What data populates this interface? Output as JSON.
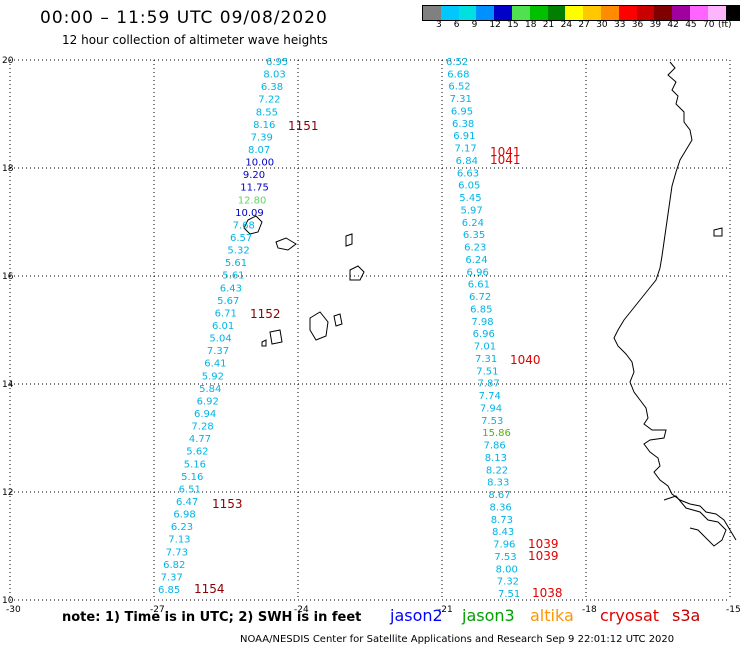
{
  "header": {
    "title": "00:00 – 11:59 UTC 09/08/2020",
    "subtitle": "12 hour collection of altimeter wave heights"
  },
  "legend": {
    "unit": "(ft)",
    "colors": [
      "#808080",
      "#00c8ff",
      "#00e0e0",
      "#0090ff",
      "#0000c8",
      "#50e050",
      "#00c000",
      "#008000",
      "#ffff00",
      "#ffc800",
      "#ff8c00",
      "#ff0000",
      "#c80000",
      "#800000",
      "#a000a0",
      "#ff64ff",
      "#ffb4ff",
      "#000000"
    ],
    "labels": [
      "3",
      "6",
      "9",
      "12",
      "15",
      "18",
      "21",
      "24",
      "27",
      "30",
      "33",
      "36",
      "39",
      "42",
      "45",
      "70"
    ]
  },
  "axes": {
    "x_ticks": [
      "-30",
      "-27",
      "-24",
      "-21",
      "-18",
      "-15"
    ],
    "y_ticks": [
      "20",
      "18",
      "16",
      "14",
      "12",
      "10"
    ]
  },
  "footer": {
    "note": "note: 1) Time is in UTC; 2) SWH is in feet",
    "credit": "NOAA/NESDIS Center for Satellite Applications and Research   Sep  9 22:01:12 UTC 2020"
  },
  "satellites": [
    {
      "name": "jason2",
      "color": "#0000ff"
    },
    {
      "name": "jason3",
      "color": "#00a000"
    },
    {
      "name": "altika",
      "color": "#ff9600"
    },
    {
      "name": "cryosat",
      "color": "#e00000"
    },
    {
      "name": "s3a",
      "color": "#c00000"
    }
  ],
  "tracks": {
    "track_a": [
      {
        "v": "6.95",
        "c": "#00b4e6"
      },
      {
        "v": "8.03",
        "c": "#00b4e6"
      },
      {
        "v": "6.38",
        "c": "#00b4e6"
      },
      {
        "v": "7.22",
        "c": "#00b4e6"
      },
      {
        "v": "8.55",
        "c": "#00b4e6"
      },
      {
        "v": "8.16",
        "c": "#00b4e6"
      },
      {
        "v": "7.39",
        "c": "#00b4e6"
      },
      {
        "v": "8.07",
        "c": "#00b4e6"
      },
      {
        "v": "10.00",
        "c": "#0000c8"
      },
      {
        "v": "9.20",
        "c": "#0000c8"
      },
      {
        "v": "11.75",
        "c": "#0000c8"
      },
      {
        "v": "12.80",
        "c": "#64d264"
      },
      {
        "v": "10.09",
        "c": "#0000c8"
      },
      {
        "v": "7.68",
        "c": "#00b4e6"
      },
      {
        "v": "6.57",
        "c": "#00b4e6"
      },
      {
        "v": "5.32",
        "c": "#00b4e6"
      },
      {
        "v": "5.61",
        "c": "#00b4e6"
      },
      {
        "v": "5.61",
        "c": "#00b4e6"
      },
      {
        "v": "6.43",
        "c": "#00b4e6"
      },
      {
        "v": "5.67",
        "c": "#00b4e6"
      },
      {
        "v": "6.71",
        "c": "#00b4e6"
      },
      {
        "v": "6.01",
        "c": "#00b4e6"
      },
      {
        "v": "5.04",
        "c": "#00b4e6"
      },
      {
        "v": "7.37",
        "c": "#00b4e6"
      },
      {
        "v": "6.41",
        "c": "#00b4e6"
      },
      {
        "v": "5.92",
        "c": "#00b4e6"
      },
      {
        "v": "5.84",
        "c": "#00b4e6"
      },
      {
        "v": "6.92",
        "c": "#00b4e6"
      },
      {
        "v": "6.94",
        "c": "#00b4e6"
      },
      {
        "v": "7.28",
        "c": "#00b4e6"
      },
      {
        "v": "4.77",
        "c": "#00b4e6"
      },
      {
        "v": "5.62",
        "c": "#00b4e6"
      },
      {
        "v": "5.16",
        "c": "#00b4e6"
      },
      {
        "v": "5.16",
        "c": "#00b4e6"
      },
      {
        "v": "6.51",
        "c": "#00b4e6"
      },
      {
        "v": "6.47",
        "c": "#00b4e6"
      },
      {
        "v": "6.98",
        "c": "#00b4e6"
      },
      {
        "v": "6.23",
        "c": "#00b4e6"
      },
      {
        "v": "7.13",
        "c": "#00b4e6"
      },
      {
        "v": "7.73",
        "c": "#00b4e6"
      },
      {
        "v": "6.82",
        "c": "#00b4e6"
      },
      {
        "v": "7.37",
        "c": "#00b4e6"
      },
      {
        "v": "6.85",
        "c": "#00b4e6"
      }
    ],
    "track_b": [
      {
        "v": "6.52",
        "c": "#00b4e6"
      },
      {
        "v": "6.68",
        "c": "#00b4e6"
      },
      {
        "v": "6.52",
        "c": "#00b4e6"
      },
      {
        "v": "7.31",
        "c": "#00b4e6"
      },
      {
        "v": "6.95",
        "c": "#00b4e6"
      },
      {
        "v": "6.38",
        "c": "#00b4e6"
      },
      {
        "v": "6.91",
        "c": "#00b4e6"
      },
      {
        "v": "7.17",
        "c": "#00b4e6"
      },
      {
        "v": "6.84",
        "c": "#00b4e6"
      },
      {
        "v": "6.63",
        "c": "#00b4e6"
      },
      {
        "v": "6.05",
        "c": "#00b4e6"
      },
      {
        "v": "5.45",
        "c": "#00b4e6"
      },
      {
        "v": "5.97",
        "c": "#00b4e6"
      },
      {
        "v": "6.24",
        "c": "#00b4e6"
      },
      {
        "v": "6.35",
        "c": "#00b4e6"
      },
      {
        "v": "6.23",
        "c": "#00b4e6"
      },
      {
        "v": "6.24",
        "c": "#00b4e6"
      },
      {
        "v": "6.96",
        "c": "#00b4e6"
      },
      {
        "v": "6.61",
        "c": "#00b4e6"
      },
      {
        "v": "6.72",
        "c": "#00b4e6"
      },
      {
        "v": "6.85",
        "c": "#00b4e6"
      },
      {
        "v": "7.98",
        "c": "#00b4e6"
      },
      {
        "v": "6.96",
        "c": "#00b4e6"
      },
      {
        "v": "7.01",
        "c": "#00b4e6"
      },
      {
        "v": "7.31",
        "c": "#00b4e6"
      },
      {
        "v": "7.51",
        "c": "#00b4e6"
      },
      {
        "v": "7.87",
        "c": "#00b4e6"
      },
      {
        "v": "7.74",
        "c": "#00b4e6"
      },
      {
        "v": "7.94",
        "c": "#00b4e6"
      },
      {
        "v": "7.53",
        "c": "#00b4e6"
      },
      {
        "v": "15.86",
        "c": "#50b400"
      },
      {
        "v": "7.86",
        "c": "#00b4e6"
      },
      {
        "v": "8.13",
        "c": "#00b4e6"
      },
      {
        "v": "8.22",
        "c": "#00b4e6"
      },
      {
        "v": "8.33",
        "c": "#00b4e6"
      },
      {
        "v": "8.67",
        "c": "#00b4e6"
      },
      {
        "v": "8.36",
        "c": "#00b4e6"
      },
      {
        "v": "8.73",
        "c": "#00b4e6"
      },
      {
        "v": "8.43",
        "c": "#00b4e6"
      },
      {
        "v": "7.96",
        "c": "#00b4e6"
      },
      {
        "v": "7.53",
        "c": "#00b4e6"
      },
      {
        "v": "8.00",
        "c": "#00b4e6"
      },
      {
        "v": "7.32",
        "c": "#00b4e6"
      },
      {
        "v": "7.51",
        "c": "#00b4e6"
      }
    ]
  },
  "pass_times": [
    {
      "t": "1151",
      "c": "#8b0000"
    },
    {
      "t": "1152",
      "c": "#8b0000"
    },
    {
      "t": "1153",
      "c": "#8b0000"
    },
    {
      "t": "1154",
      "c": "#8b0000"
    },
    {
      "t": "1041",
      "c": "#e00000"
    },
    {
      "t": "1041",
      "c": "#e00000"
    },
    {
      "t": "1040",
      "c": "#e00000"
    },
    {
      "t": "1039",
      "c": "#e00000"
    },
    {
      "t": "1039",
      "c": "#e00000"
    },
    {
      "t": "1038",
      "c": "#e00000"
    }
  ]
}
